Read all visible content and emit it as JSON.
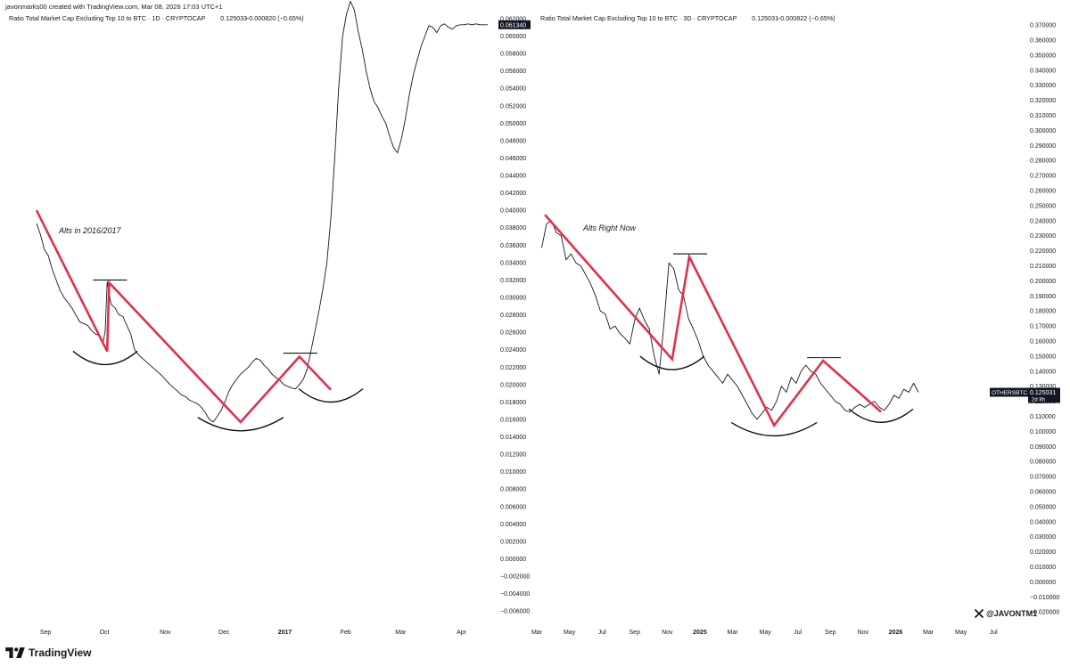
{
  "credit": "javonmarks00 created with TradingView.com, Mar 08, 2026 17:03 UTC+1",
  "brand": "TradingView",
  "x_handle": "@JAVONTM1",
  "chart_data": [
    {
      "type": "line",
      "title": "Ratio Total Market Cap Excluding Top 10 to BTC · 1D · CRYPTOCAP",
      "price": "0.125033",
      "change": "−0.000820 (−0.65%)",
      "yticks": [
        "0.062000",
        "0.060000",
        "0.058000",
        "0.056000",
        "0.054000",
        "0.052000",
        "0.050000",
        "0.048000",
        "0.046000",
        "0.044000",
        "0.042000",
        "0.040000",
        "0.038000",
        "0.036000",
        "0.034000",
        "0.032000",
        "0.030000",
        "0.028000",
        "0.026000",
        "0.024000",
        "0.022000",
        "0.020000",
        "0.018000",
        "0.016000",
        "0.014000",
        "0.012000",
        "0.010000",
        "0.008000",
        "0.006000",
        "0.004000",
        "0.002000",
        "0.000000",
        "−0.002000",
        "−0.004000",
        "−0.006000"
      ],
      "ylim": [
        -0.0068,
        0.0623
      ],
      "last_label": "0.061340",
      "xticks": [
        "Sep",
        "Oct",
        "Nov",
        "Dec",
        "2017",
        "Feb",
        "Mar",
        "Apr"
      ],
      "xtick_values": [
        4.6,
        34.6,
        65.6,
        95.6,
        126.6,
        157.6,
        185.6,
        216.6
      ],
      "xlim": [
        -15,
        235
      ],
      "x": [
        0,
        2,
        4,
        6,
        8,
        10,
        12,
        14,
        16,
        18,
        20,
        22,
        24,
        26,
        28,
        30,
        32,
        34,
        35,
        36,
        38,
        40,
        42,
        44,
        46,
        48,
        50,
        52,
        54,
        56,
        58,
        60,
        62,
        64,
        66,
        68,
        70,
        72,
        74,
        76,
        78,
        80,
        82,
        84,
        86,
        88,
        90,
        92,
        94,
        96,
        98,
        100,
        102,
        104,
        106,
        108,
        110,
        112,
        114,
        116,
        118,
        120,
        122,
        124,
        126,
        128,
        130,
        132,
        134,
        136,
        138,
        140,
        142,
        144,
        146,
        148,
        150,
        152,
        154,
        156,
        158,
        160,
        162,
        164,
        166,
        168,
        170,
        172,
        174,
        176,
        178,
        180,
        182,
        184,
        186,
        188,
        190,
        192,
        194,
        196,
        198,
        200,
        202,
        204,
        206,
        208,
        210,
        212,
        214,
        216,
        218,
        220,
        222,
        224,
        226,
        228,
        230
      ],
      "values": [
        0.0385,
        0.0372,
        0.0355,
        0.0348,
        0.0332,
        0.032,
        0.0308,
        0.03,
        0.0294,
        0.0288,
        0.028,
        0.0272,
        0.027,
        0.0268,
        0.0262,
        0.0258,
        0.0256,
        0.0249,
        0.0262,
        0.0318,
        0.0292,
        0.0288,
        0.028,
        0.0278,
        0.0268,
        0.0258,
        0.024,
        0.0234,
        0.023,
        0.0226,
        0.0222,
        0.0218,
        0.0214,
        0.021,
        0.0205,
        0.02,
        0.0196,
        0.0192,
        0.0188,
        0.0186,
        0.0182,
        0.018,
        0.0178,
        0.0174,
        0.0168,
        0.016,
        0.0157,
        0.0163,
        0.017,
        0.018,
        0.0192,
        0.02,
        0.0206,
        0.0212,
        0.0216,
        0.022,
        0.0226,
        0.023,
        0.0228,
        0.0222,
        0.0218,
        0.0212,
        0.0208,
        0.0205,
        0.02,
        0.0198,
        0.0196,
        0.0195,
        0.02,
        0.0206,
        0.0218,
        0.024,
        0.0262,
        0.0285,
        0.031,
        0.034,
        0.039,
        0.046,
        0.054,
        0.06,
        0.0625,
        0.064,
        0.063,
        0.0605,
        0.0585,
        0.056,
        0.054,
        0.0525,
        0.0518,
        0.0508,
        0.05,
        0.0485,
        0.0472,
        0.0466,
        0.0482,
        0.0505,
        0.0532,
        0.0555,
        0.0572,
        0.0588,
        0.06,
        0.0612,
        0.061,
        0.0604,
        0.0612,
        0.0614,
        0.061,
        0.0608,
        0.0612,
        0.0613,
        0.0613,
        0.0614,
        0.0613,
        0.0614,
        0.0613,
        0.0613,
        0.0613
      ],
      "annotation": "Alts in 2016/2017",
      "pattern_x": [
        0,
        36,
        37,
        104,
        134,
        150
      ],
      "pattern_y": [
        0.04,
        0.0238,
        0.0317,
        0.0157,
        0.0232,
        0.0194
      ],
      "resistance_lines": [
        [
          37,
          0.032
        ],
        [
          134,
          0.0236
        ]
      ],
      "arcs": [
        [
          35,
          0.0228
        ],
        [
          104,
          0.0152
        ],
        [
          150,
          0.0185
        ]
      ]
    },
    {
      "type": "line",
      "title": "Ratio Total Market Cap Excluding Top 10 to BTC · 3D · CRYPTOCAP",
      "price": "0.125031",
      "change": "−0.000822 (−0.65%)",
      "yticks": [
        "0.370000",
        "0.360000",
        "0.350000",
        "0.340000",
        "0.330000",
        "0.320000",
        "0.310000",
        "0.300000",
        "0.290000",
        "0.280000",
        "0.270000",
        "0.260000",
        "0.250000",
        "0.240000",
        "0.230000",
        "0.220000",
        "0.210000",
        "0.200000",
        "0.190000",
        "0.180000",
        "0.170000",
        "0.160000",
        "0.150000",
        "0.140000",
        "0.130000",
        "0.120000",
        "0.110000",
        "0.100000",
        "0.090000",
        "0.080000",
        "0.070000",
        "0.060000",
        "0.050000",
        "0.040000",
        "0.030000",
        "0.020000",
        "0.010000",
        "0.000000",
        "−0.010000",
        "−0.020000"
      ],
      "ylim": [
        -0.024,
        0.376
      ],
      "symbol_label": "OTHERSBTC",
      "last_label": "0.125031",
      "countdown": "2d 8h",
      "xticks": [
        "Mar",
        "May",
        "Jul",
        "Sep",
        "Nov",
        "2025",
        "Mar",
        "May",
        "Jul",
        "Sep",
        "Nov",
        "2026",
        "Mar",
        "May",
        "Jul"
      ],
      "xtick_values": [
        -0.3,
        1.7,
        3.7,
        5.7,
        7.7,
        9.7,
        11.7,
        13.7,
        15.7,
        17.7,
        19.7,
        21.7,
        23.7,
        25.7,
        27.7
      ],
      "xlim": [
        -0.3,
        29
      ],
      "x": [
        0,
        0.3,
        0.6,
        0.9,
        1.2,
        1.5,
        1.8,
        2.1,
        2.4,
        2.7,
        3.0,
        3.3,
        3.6,
        3.9,
        4.2,
        4.5,
        4.8,
        5.1,
        5.4,
        5.7,
        6.0,
        6.3,
        6.6,
        6.9,
        7.2,
        7.5,
        7.8,
        8.1,
        8.4,
        8.7,
        9.0,
        9.3,
        9.6,
        9.9,
        10.2,
        10.5,
        10.8,
        11.1,
        11.4,
        11.7,
        12.0,
        12.3,
        12.6,
        12.9,
        13.2,
        13.5,
        13.8,
        14.1,
        14.4,
        14.7,
        15.0,
        15.3,
        15.6,
        15.9,
        16.2,
        16.5,
        16.8,
        17.1,
        17.4,
        17.7,
        18.0,
        18.3,
        18.6,
        18.9,
        19.2,
        19.5,
        19.8,
        20.1,
        20.4,
        20.7,
        21.0,
        21.3,
        21.6,
        21.9,
        22.2,
        22.5,
        22.8,
        23.1
      ],
      "values": [
        0.222,
        0.238,
        0.24,
        0.232,
        0.23,
        0.214,
        0.218,
        0.212,
        0.21,
        0.204,
        0.198,
        0.19,
        0.18,
        0.178,
        0.168,
        0.17,
        0.165,
        0.162,
        0.158,
        0.174,
        0.182,
        0.174,
        0.168,
        0.15,
        0.138,
        0.172,
        0.212,
        0.208,
        0.194,
        0.19,
        0.175,
        0.168,
        0.16,
        0.15,
        0.144,
        0.14,
        0.136,
        0.132,
        0.138,
        0.134,
        0.13,
        0.124,
        0.118,
        0.112,
        0.108,
        0.112,
        0.116,
        0.114,
        0.12,
        0.13,
        0.126,
        0.136,
        0.132,
        0.14,
        0.144,
        0.14,
        0.138,
        0.132,
        0.128,
        0.124,
        0.12,
        0.118,
        0.114,
        0.113,
        0.116,
        0.118,
        0.116,
        0.118,
        0.12,
        0.116,
        0.114,
        0.118,
        0.124,
        0.122,
        0.128,
        0.126,
        0.132,
        0.126
      ],
      "annotation": "Alts Right Now",
      "pattern_x": [
        0.2,
        8.0,
        9.05,
        14.25,
        17.25,
        20.8
      ],
      "pattern_y": [
        0.244,
        0.148,
        0.216,
        0.104,
        0.147,
        0.113
      ],
      "resistance_lines": [
        [
          9.05,
          0.218
        ],
        [
          17.25,
          0.149
        ]
      ],
      "arcs": [
        [
          8.0,
          0.144
        ],
        [
          14.25,
          0.1
        ],
        [
          20.8,
          0.109
        ]
      ]
    }
  ],
  "colors": {
    "price_line": "#131722",
    "pattern": "#e0314b",
    "arc": "#111111",
    "grid": "#ffffff",
    "axis_text": "#131722",
    "label_bg": "#131722",
    "label_text": "#ffffff"
  },
  "icons": [
    "tradingview-logo-icon",
    "x-logo-icon"
  ]
}
